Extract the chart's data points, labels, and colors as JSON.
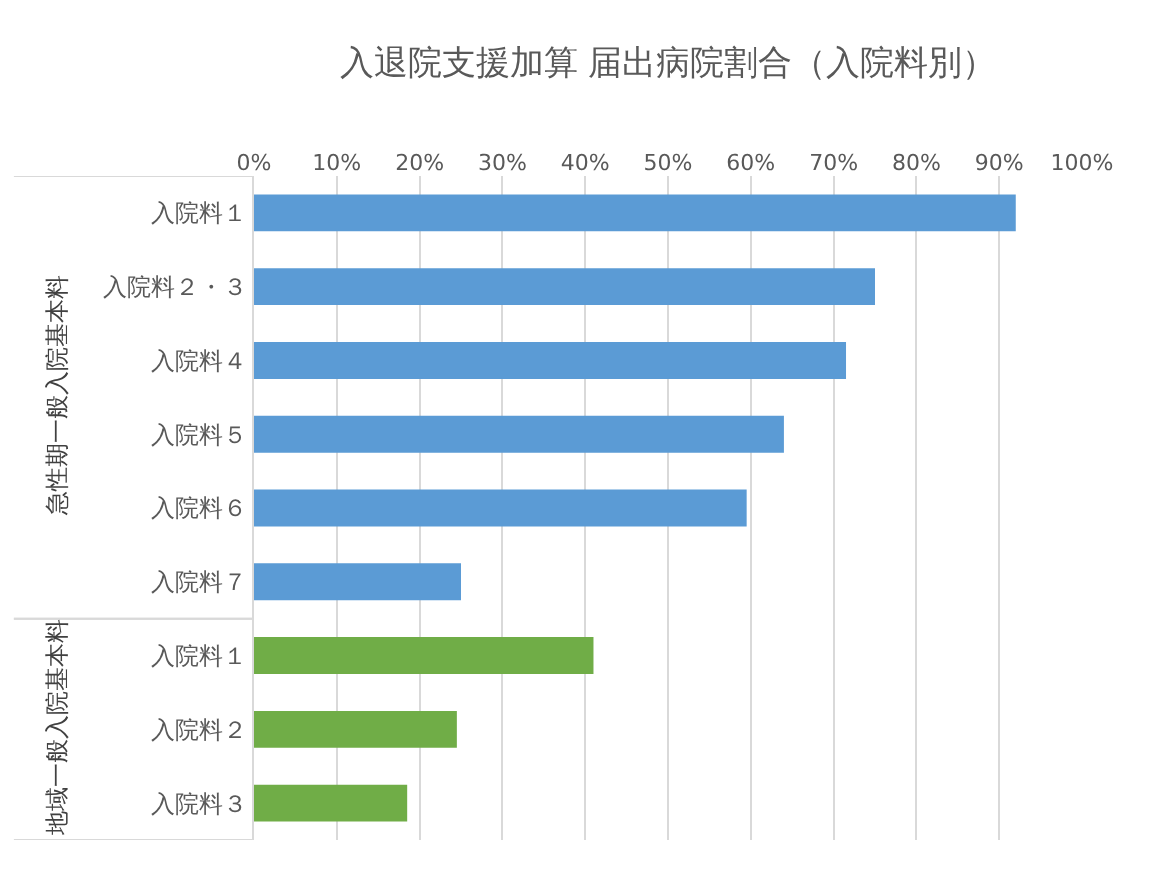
{
  "chart_data": {
    "type": "bar",
    "orientation": "horizontal",
    "title": "入退院支援加算 届出病院割合（入院料別）",
    "categories": [
      "入院料１",
      "入院料２・３",
      "入院料４",
      "入院料５",
      "入院料６",
      "入院料７",
      "入院料１",
      "入院料２",
      "入院料３"
    ],
    "series": [
      {
        "color": "#5b9bd5",
        "values": [
          92,
          75,
          71.5,
          64,
          59.5,
          25,
          null,
          null,
          null
        ]
      },
      {
        "color": "#70ad47",
        "values": [
          null,
          null,
          null,
          null,
          null,
          null,
          41,
          24.5,
          18.5
        ]
      }
    ],
    "xlim": [
      0,
      100
    ],
    "xticks": [
      {
        "value": 0,
        "label": "0%"
      },
      {
        "value": 10,
        "label": "10%"
      },
      {
        "value": 20,
        "label": "20%"
      },
      {
        "value": 30,
        "label": "30%"
      },
      {
        "value": 40,
        "label": "40%"
      },
      {
        "value": 50,
        "label": "50%"
      },
      {
        "value": 60,
        "label": "60%"
      },
      {
        "value": 70,
        "label": "70%"
      },
      {
        "value": 80,
        "label": "80%"
      },
      {
        "value": 90,
        "label": "90%"
      },
      {
        "value": 100,
        "label": "100%"
      }
    ],
    "annotations": [
      "急性期一般入院基本料",
      "地域一般入院基本料"
    ],
    "grid": "x"
  }
}
